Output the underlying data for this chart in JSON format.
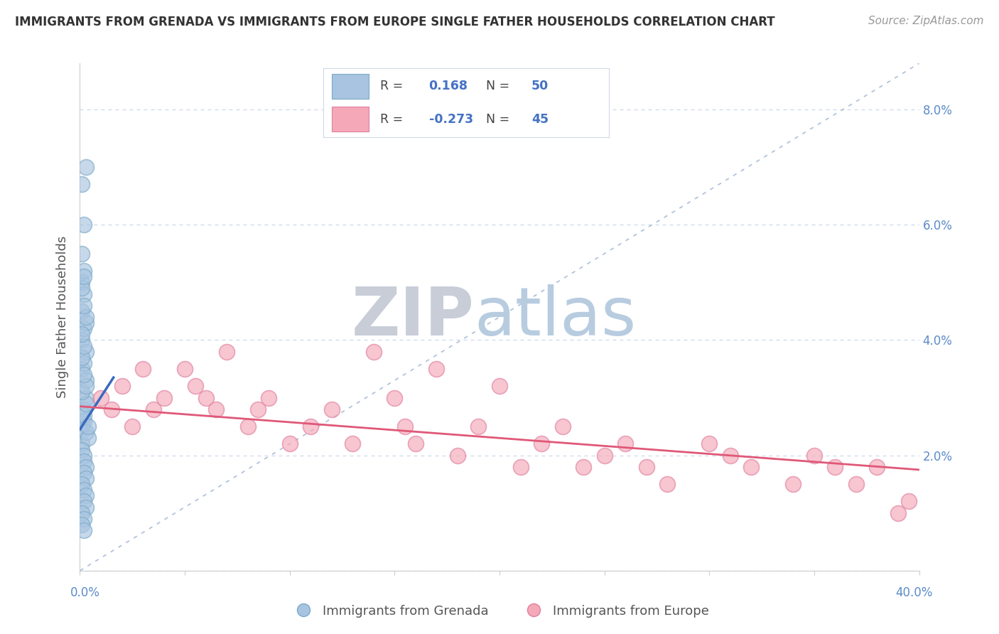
{
  "title": "IMMIGRANTS FROM GRENADA VS IMMIGRANTS FROM EUROPE SINGLE FATHER HOUSEHOLDS CORRELATION CHART",
  "source": "Source: ZipAtlas.com",
  "ylabel": "Single Father Households",
  "r_blue": 0.168,
  "n_blue": 50,
  "r_pink": -0.273,
  "n_pink": 45,
  "blue_color": "#a8c4e0",
  "blue_edge_color": "#7aaac8",
  "pink_color": "#f4a8b8",
  "pink_edge_color": "#e080a0",
  "blue_line_color": "#3a6abf",
  "pink_line_color": "#e05878",
  "diagonal_color": "#aabcd8",
  "watermark_zip_color": "#c8cdd8",
  "watermark_atlas_color": "#b8cce0",
  "background_color": "#ffffff",
  "xlim": [
    0.0,
    0.4
  ],
  "ylim": [
    0.0,
    0.088
  ],
  "ytick_vals": [
    0.0,
    0.02,
    0.04,
    0.06,
    0.08
  ],
  "blue_scatter_x": [
    0.001,
    0.002,
    0.003,
    0.001,
    0.002,
    0.003,
    0.004,
    0.001,
    0.002,
    0.003,
    0.001,
    0.002,
    0.004,
    0.001,
    0.003,
    0.002,
    0.001,
    0.003,
    0.002,
    0.001,
    0.002,
    0.003,
    0.001,
    0.002,
    0.003,
    0.002,
    0.001,
    0.002,
    0.003,
    0.002,
    0.001,
    0.002,
    0.003,
    0.001,
    0.002,
    0.003,
    0.001,
    0.002,
    0.003,
    0.002,
    0.001,
    0.002,
    0.001,
    0.003,
    0.002,
    0.001,
    0.002,
    0.001,
    0.003,
    0.002
  ],
  "blue_scatter_y": [
    0.025,
    0.028,
    0.03,
    0.022,
    0.026,
    0.024,
    0.023,
    0.021,
    0.027,
    0.029,
    0.031,
    0.02,
    0.025,
    0.035,
    0.033,
    0.019,
    0.04,
    0.038,
    0.036,
    0.045,
    0.042,
    0.018,
    0.05,
    0.048,
    0.043,
    0.017,
    0.055,
    0.052,
    0.016,
    0.06,
    0.015,
    0.014,
    0.013,
    0.067,
    0.012,
    0.011,
    0.01,
    0.009,
    0.032,
    0.034,
    0.037,
    0.039,
    0.041,
    0.044,
    0.046,
    0.049,
    0.051,
    0.008,
    0.07,
    0.007
  ],
  "blue_line_x": [
    0.0,
    0.016
  ],
  "blue_line_y": [
    0.0245,
    0.0335
  ],
  "pink_scatter_x": [
    0.01,
    0.015,
    0.02,
    0.025,
    0.03,
    0.035,
    0.04,
    0.05,
    0.055,
    0.06,
    0.065,
    0.07,
    0.08,
    0.085,
    0.09,
    0.1,
    0.11,
    0.12,
    0.13,
    0.14,
    0.15,
    0.155,
    0.16,
    0.17,
    0.18,
    0.19,
    0.2,
    0.21,
    0.22,
    0.23,
    0.24,
    0.25,
    0.26,
    0.27,
    0.28,
    0.3,
    0.31,
    0.32,
    0.34,
    0.35,
    0.36,
    0.37,
    0.38,
    0.39,
    0.395
  ],
  "pink_scatter_y": [
    0.03,
    0.028,
    0.032,
    0.025,
    0.035,
    0.028,
    0.03,
    0.035,
    0.032,
    0.03,
    0.028,
    0.038,
    0.025,
    0.028,
    0.03,
    0.022,
    0.025,
    0.028,
    0.022,
    0.038,
    0.03,
    0.025,
    0.022,
    0.035,
    0.02,
    0.025,
    0.032,
    0.018,
    0.022,
    0.025,
    0.018,
    0.02,
    0.022,
    0.018,
    0.015,
    0.022,
    0.02,
    0.018,
    0.015,
    0.02,
    0.018,
    0.015,
    0.018,
    0.01,
    0.012
  ],
  "pink_line_x": [
    0.0,
    0.4
  ],
  "pink_line_y": [
    0.0285,
    0.0175
  ],
  "legend_labels": [
    "Immigrants from Grenada",
    "Immigrants from Europe"
  ]
}
